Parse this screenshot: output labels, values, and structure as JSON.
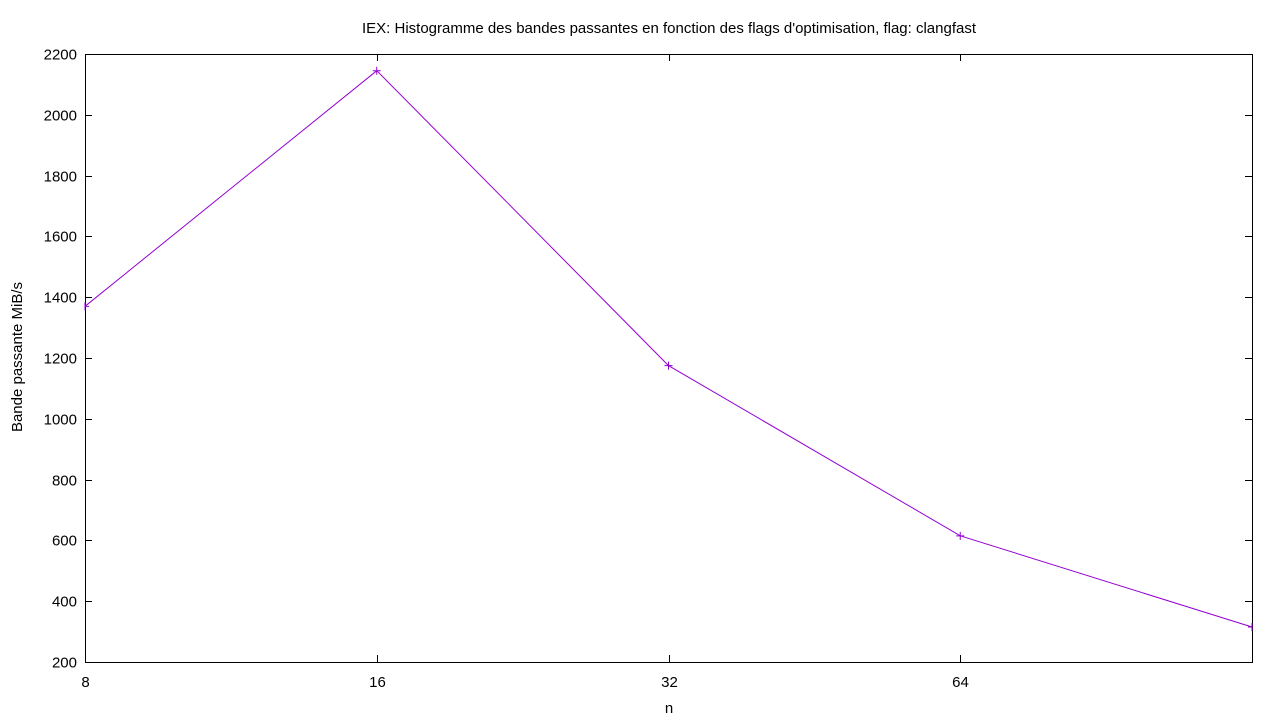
{
  "chart_data": {
    "type": "line",
    "title": "IEX: Histogramme des bandes passantes en fonction des flags d'optimisation, flag: clangfast",
    "xlabel": "n",
    "ylabel": "Bande passante MiB/s",
    "x_scale": "log2",
    "xlim": [
      8,
      128
    ],
    "ylim": [
      200,
      2200
    ],
    "x_ticks": [
      8,
      16,
      32,
      64
    ],
    "y_ticks": [
      200,
      400,
      600,
      800,
      1000,
      1200,
      1400,
      1600,
      1800,
      2000,
      2200
    ],
    "grid": false,
    "series": [
      {
        "color": "#9400d3",
        "marker": "plus",
        "x": [
          8,
          16,
          32,
          64,
          128
        ],
        "y": [
          1370,
          2145,
          1175,
          615,
          315
        ]
      }
    ]
  }
}
